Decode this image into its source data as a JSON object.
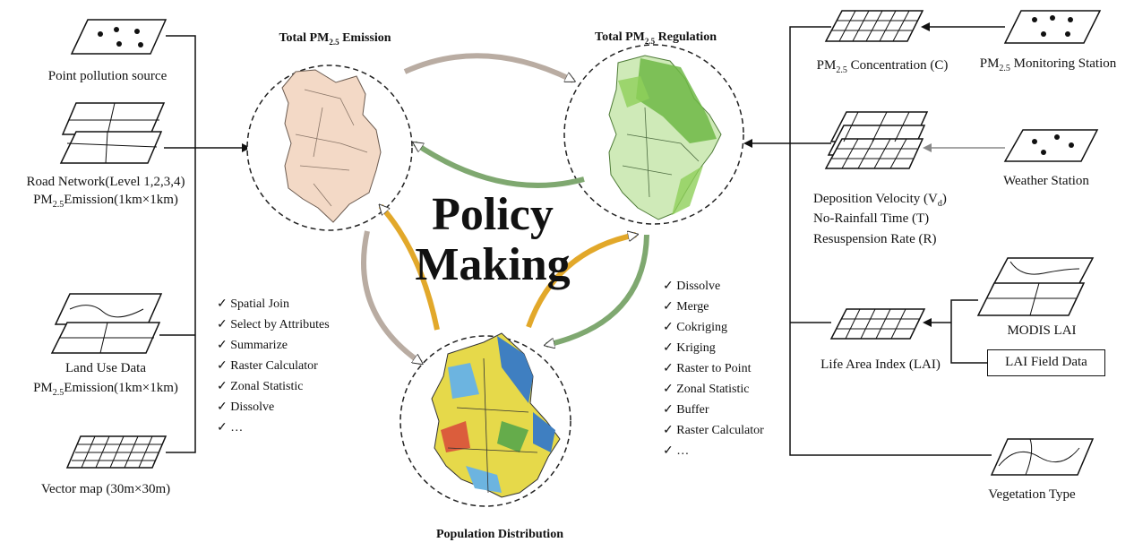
{
  "left_inputs": {
    "point_source": "Point pollution source",
    "road_line1": "Road Network(Level 1,2,3,4)",
    "road_line2_prefix": "PM",
    "road_line2_sub": "2.5",
    "road_line2_suffix": "Emission(1km×1km)",
    "landuse_line1": "Land Use Data",
    "landuse_line2_prefix": "PM",
    "landuse_line2_sub": "2.5",
    "landuse_line2_suffix": "Emission(1km×1km)",
    "vector_map": "Vector map (30m×30m)"
  },
  "circles": {
    "emission_title_prefix": "Total PM",
    "emission_title_sub": "2.5",
    "emission_title_suffix": " Emission",
    "regulation_title_prefix": "Total PM",
    "regulation_title_sub": "2.5",
    "regulation_title_suffix": " Regulation",
    "population_title": "Population Distribution"
  },
  "center": {
    "line1": "Policy",
    "line2": "Making"
  },
  "left_tools": [
    "Spatial Join",
    "Select by Attributes",
    "Summarize",
    "Raster Calculator",
    "Zonal Statistic",
    "Dissolve",
    "…"
  ],
  "right_tools": [
    "Dissolve",
    "Merge",
    "Cokriging",
    "Kriging",
    "Raster to Point",
    "Zonal Statistic",
    "Buffer",
    "Raster Calculator",
    "…"
  ],
  "right_inputs": {
    "concentration_prefix": "PM",
    "concentration_sub": "2.5",
    "concentration_suffix": " Concentration (C)",
    "monitoring_prefix": "PM",
    "monitoring_sub": "2.5",
    "monitoring_suffix": " Monitoring Station",
    "weather_station": "Weather Station",
    "deposition_prefix": "Deposition Velocity (V",
    "deposition_sub": "d",
    "deposition_suffix": ")",
    "no_rainfall": "No-Rainfall Time (T)",
    "resuspension": "Resuspension Rate (R)",
    "modis_lai": "MODIS LAI",
    "lai_field": "LAI Field Data",
    "life_area": "Life Area Index (LAI)",
    "vegetation": "Vegetation Type"
  },
  "colors": {
    "emission_map": "#f3d9c6",
    "regulation_map": "#8fcf5a",
    "population_water": "#3f7fc1",
    "population_land": "#e6d94a",
    "arrow_gray": "#b9aca2",
    "arrow_green": "#7fa870",
    "arrow_orange": "#e2a82a"
  }
}
